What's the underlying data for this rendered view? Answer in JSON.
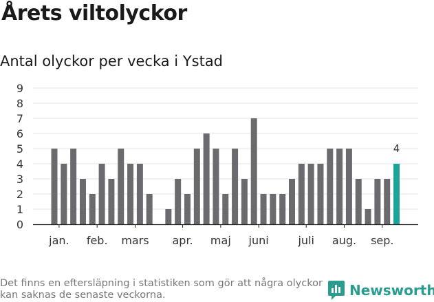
{
  "header": {
    "title": "Årets viltolyckor",
    "subtitle": "Antal olyckor per vecka i Ystad"
  },
  "footer": {
    "note": "Det finns en eftersläpning i statistiken som gör att några olyckor kan saknas de senaste veckorna.",
    "brand": "Newsworthy",
    "brand_color": "#2a9d8f"
  },
  "colors": {
    "bar": "#6b6b6f",
    "highlight": "#1aa596",
    "grid": "#e3e3e3",
    "axis": "#222222"
  },
  "chart_data": {
    "type": "bar",
    "title": "",
    "xlabel": "",
    "ylabel": "",
    "ylim": [
      0,
      9
    ],
    "yticks": [
      0,
      1,
      2,
      3,
      4,
      5,
      6,
      7,
      8,
      9
    ],
    "grid": true,
    "x": [
      1,
      2,
      3,
      4,
      5,
      6,
      7,
      8,
      9,
      10,
      11,
      12,
      13,
      14,
      15,
      16,
      17,
      18,
      19,
      20,
      21,
      22,
      23,
      24,
      25,
      26,
      27,
      28,
      29,
      30,
      31,
      32,
      33,
      34,
      35,
      36,
      37
    ],
    "values": [
      5,
      4,
      5,
      3,
      2,
      4,
      3,
      5,
      4,
      4,
      2,
      0,
      1,
      3,
      2,
      5,
      6,
      5,
      2,
      5,
      3,
      7,
      2,
      2,
      2,
      3,
      4,
      4,
      4,
      5,
      5,
      5,
      3,
      1,
      3,
      3,
      4
    ],
    "highlight_index": 36,
    "annotations": [
      {
        "index": 36,
        "text": "4"
      }
    ],
    "month_labels": [
      {
        "label": "jan.",
        "x": 1.5
      },
      {
        "label": "feb.",
        "x": 5.5
      },
      {
        "label": "mars",
        "x": 9.5
      },
      {
        "label": "apr.",
        "x": 14.5
      },
      {
        "label": "maj",
        "x": 18.5
      },
      {
        "label": "juni",
        "x": 22.5
      },
      {
        "label": "juli",
        "x": 27.5
      },
      {
        "label": "aug.",
        "x": 31.5
      },
      {
        "label": "sep.",
        "x": 35.5
      }
    ]
  }
}
